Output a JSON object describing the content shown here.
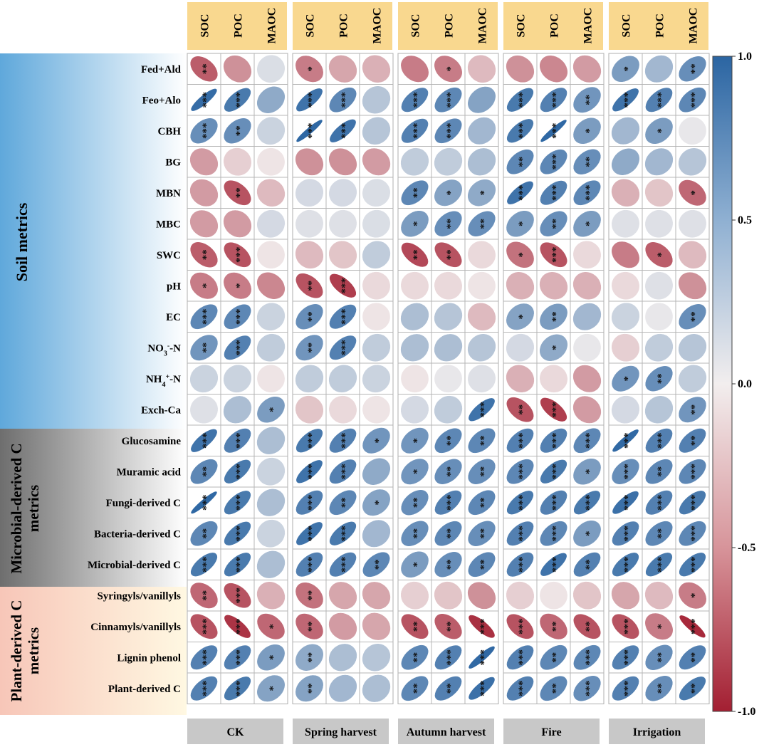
{
  "chart_data": {
    "type": "heatmap",
    "title": "",
    "panels": [
      "CK",
      "Spring harvest",
      "Autumn harvest",
      "Fire",
      "Irrigation"
    ],
    "columns": [
      "SOC",
      "POC",
      "MAOC"
    ],
    "row_groups": [
      {
        "name": "Soil metrics",
        "rows": [
          "Fed+Ald",
          "Feo+Alo",
          "CBH",
          "BG",
          "MBN",
          "MBC",
          "SWC",
          "pH",
          "EC",
          "NO3--N",
          "NH4+-N",
          "Exch-Ca"
        ]
      },
      {
        "name_lines": [
          "Microbial-derived C",
          "metrics"
        ],
        "rows": [
          "Glucosamine",
          "Muramic acid",
          "Fungi-derived C",
          "Bacteria-derived C",
          "Microbial-derived C"
        ]
      },
      {
        "name_lines": [
          "Plant-derived C",
          "metrics"
        ],
        "rows": [
          "Syringyls/vanillyls",
          "Cinnamyls/vanillyls",
          "Lignin phenol",
          "Plant-derived C"
        ]
      }
    ],
    "colorbar": {
      "range": [
        -1.0,
        1.0
      ],
      "ticks": [
        "1.0",
        "0.5",
        "0.0",
        "-0.5",
        "-1.0"
      ],
      "colors": {
        "neg": "#A31F32",
        "mid": "#F2EEEE",
        "pos": "#2B65A2"
      }
    },
    "header_color": "#F9D88F",
    "band_colors": {
      "soil": "#5FA8DB",
      "microbial": "#6E6E6E",
      "plant": "#F7C6B8",
      "plant_end": "#FFF3D6"
    },
    "panel_label_color": "#C8C8C8",
    "values": [
      [
        [
          -0.7,
          -0.45,
          0.12
        ],
        [
          -0.55,
          -0.35,
          -0.3
        ],
        [
          -0.55,
          -0.55,
          -0.25
        ],
        [
          -0.45,
          -0.5,
          -0.4
        ],
        [
          0.6,
          0.4,
          0.7
        ]
      ],
      [
        [
          0.95,
          0.85,
          0.5
        ],
        [
          0.9,
          0.75,
          0.3
        ],
        [
          0.8,
          0.75,
          0.55
        ],
        [
          0.85,
          0.8,
          0.65
        ],
        [
          0.9,
          0.8,
          0.75
        ]
      ],
      [
        [
          0.7,
          0.7,
          0.2
        ],
        [
          0.98,
          0.9,
          0.3
        ],
        [
          0.8,
          0.75,
          0.4
        ],
        [
          0.85,
          0.98,
          0.6
        ],
        [
          0.4,
          0.6,
          0.05
        ]
      ],
      [
        [
          -0.4,
          -0.15,
          -0.05
        ],
        [
          -0.45,
          -0.45,
          -0.4
        ],
        [
          0.25,
          0.25,
          0.35
        ],
        [
          0.75,
          0.75,
          0.7
        ],
        [
          0.5,
          0.4,
          0.3
        ]
      ],
      [
        [
          -0.4,
          -0.75,
          -0.25
        ],
        [
          0.15,
          0.15,
          0.12
        ],
        [
          0.75,
          0.55,
          0.5
        ],
        [
          0.9,
          0.8,
          0.75
        ],
        [
          -0.3,
          -0.2,
          -0.65
        ]
      ],
      [
        [
          -0.4,
          -0.4,
          0.15
        ],
        [
          0.1,
          0.1,
          0.12
        ],
        [
          0.6,
          0.7,
          0.7
        ],
        [
          0.6,
          0.7,
          0.6
        ],
        [
          0.1,
          0.1,
          0.1
        ]
      ],
      [
        [
          -0.7,
          -0.75,
          -0.05
        ],
        [
          -0.25,
          -0.2,
          0.25
        ],
        [
          -0.8,
          -0.75,
          -0.1
        ],
        [
          -0.6,
          -0.75,
          -0.1
        ],
        [
          -0.55,
          -0.7,
          -0.25
        ]
      ],
      [
        [
          -0.55,
          -0.55,
          -0.5
        ],
        [
          -0.75,
          -0.85,
          -0.1
        ],
        [
          -0.1,
          -0.1,
          -0.05
        ],
        [
          -0.3,
          -0.3,
          -0.3
        ],
        [
          -0.1,
          0.1,
          -0.45
        ]
      ],
      [
        [
          0.75,
          0.75,
          0.2
        ],
        [
          0.7,
          0.8,
          -0.05
        ],
        [
          0.35,
          0.3,
          -0.25
        ],
        [
          0.55,
          0.6,
          0.4
        ],
        [
          0.2,
          0.05,
          0.7
        ]
      ],
      [
        [
          0.65,
          0.8,
          0.25
        ],
        [
          0.65,
          0.8,
          0.25
        ],
        [
          0.35,
          0.35,
          0.3
        ],
        [
          0.15,
          0.5,
          0.05
        ],
        [
          -0.15,
          0.25,
          0.3
        ]
      ],
      [
        [
          0.2,
          0.2,
          -0.05
        ],
        [
          0.25,
          0.25,
          0.2
        ],
        [
          -0.05,
          0.05,
          0.1
        ],
        [
          -0.3,
          -0.1,
          -0.4
        ],
        [
          0.65,
          0.7,
          0.25
        ]
      ],
      [
        [
          0.1,
          0.35,
          0.6
        ],
        [
          -0.2,
          -0.1,
          -0.05
        ],
        [
          0.15,
          0.25,
          0.9
        ],
        [
          -0.75,
          -0.85,
          -0.4
        ],
        [
          0.15,
          0.3,
          0.65
        ]
      ],
      [
        [
          0.9,
          0.8,
          0.35
        ],
        [
          0.85,
          0.8,
          0.65
        ],
        [
          0.65,
          0.75,
          0.75
        ],
        [
          0.8,
          0.8,
          0.75
        ],
        [
          0.97,
          0.8,
          0.8
        ]
      ],
      [
        [
          0.75,
          0.85,
          0.2
        ],
        [
          0.9,
          0.8,
          0.5
        ],
        [
          0.65,
          0.7,
          0.7
        ],
        [
          0.75,
          0.85,
          0.6
        ],
        [
          0.7,
          0.75,
          0.75
        ]
      ],
      [
        [
          0.98,
          0.85,
          0.35
        ],
        [
          0.8,
          0.75,
          0.55
        ],
        [
          0.7,
          0.8,
          0.75
        ],
        [
          0.85,
          0.8,
          0.85
        ],
        [
          0.92,
          0.8,
          0.85
        ]
      ],
      [
        [
          0.75,
          0.85,
          0.2
        ],
        [
          0.9,
          0.85,
          0.4
        ],
        [
          0.7,
          0.75,
          0.7
        ],
        [
          0.8,
          0.75,
          0.6
        ],
        [
          0.8,
          0.75,
          0.75
        ]
      ],
      [
        [
          0.85,
          0.85,
          0.35
        ],
        [
          0.8,
          0.8,
          0.75
        ],
        [
          0.6,
          0.7,
          0.75
        ],
        [
          0.8,
          0.9,
          0.8
        ],
        [
          0.85,
          0.85,
          0.85
        ]
      ],
      [
        [
          -0.65,
          -0.75,
          -0.3
        ],
        [
          -0.6,
          -0.35,
          -0.35
        ],
        [
          -0.15,
          -0.2,
          -0.45
        ],
        [
          -0.15,
          -0.05,
          -0.2
        ],
        [
          -0.35,
          -0.25,
          -0.55
        ]
      ],
      [
        [
          -0.75,
          -0.9,
          -0.65
        ],
        [
          -0.65,
          -0.4,
          -0.35
        ],
        [
          -0.75,
          -0.7,
          -0.92
        ],
        [
          -0.75,
          -0.65,
          -0.75
        ],
        [
          -0.75,
          -0.55,
          -0.95
        ]
      ],
      [
        [
          0.8,
          0.8,
          0.6
        ],
        [
          0.5,
          0.35,
          0.3
        ],
        [
          0.75,
          0.8,
          0.97
        ],
        [
          0.8,
          0.75,
          0.75
        ],
        [
          0.8,
          0.7,
          0.8
        ]
      ],
      [
        [
          0.8,
          0.85,
          0.55
        ],
        [
          0.55,
          0.4,
          0.35
        ],
        [
          0.75,
          0.8,
          0.92
        ],
        [
          0.8,
          0.75,
          0.7
        ],
        [
          0.8,
          0.7,
          0.85
        ]
      ]
    ],
    "stars": [
      [
        [
          2,
          0,
          0
        ],
        [
          1,
          0,
          0
        ],
        [
          0,
          1,
          0
        ],
        [
          0,
          0,
          0
        ],
        [
          1,
          0,
          2
        ]
      ],
      [
        [
          3,
          3,
          0
        ],
        [
          3,
          3,
          0
        ],
        [
          3,
          3,
          0
        ],
        [
          3,
          3,
          2
        ],
        [
          3,
          3,
          3
        ]
      ],
      [
        [
          3,
          2,
          0
        ],
        [
          3,
          3,
          0
        ],
        [
          3,
          3,
          0
        ],
        [
          3,
          3,
          1
        ],
        [
          0,
          1,
          0
        ]
      ],
      [
        [
          0,
          0,
          0
        ],
        [
          0,
          0,
          0
        ],
        [
          0,
          0,
          0
        ],
        [
          2,
          3,
          2
        ],
        [
          0,
          0,
          0
        ]
      ],
      [
        [
          0,
          2,
          0
        ],
        [
          0,
          0,
          0
        ],
        [
          2,
          1,
          1
        ],
        [
          3,
          3,
          3
        ],
        [
          0,
          0,
          1
        ]
      ],
      [
        [
          0,
          0,
          0
        ],
        [
          0,
          0,
          0
        ],
        [
          1,
          2,
          2
        ],
        [
          1,
          2,
          1
        ],
        [
          0,
          0,
          0
        ]
      ],
      [
        [
          2,
          3,
          0
        ],
        [
          0,
          0,
          0
        ],
        [
          2,
          2,
          0
        ],
        [
          1,
          3,
          0
        ],
        [
          0,
          1,
          0
        ]
      ],
      [
        [
          1,
          1,
          0
        ],
        [
          2,
          3,
          0
        ],
        [
          0,
          0,
          0
        ],
        [
          0,
          0,
          0
        ],
        [
          0,
          0,
          0
        ]
      ],
      [
        [
          3,
          3,
          0
        ],
        [
          2,
          3,
          0
        ],
        [
          0,
          0,
          0
        ],
        [
          1,
          2,
          0
        ],
        [
          0,
          0,
          2
        ]
      ],
      [
        [
          2,
          3,
          0
        ],
        [
          2,
          3,
          0
        ],
        [
          0,
          0,
          0
        ],
        [
          0,
          1,
          0
        ],
        [
          0,
          0,
          0
        ]
      ],
      [
        [
          0,
          0,
          0
        ],
        [
          0,
          0,
          0
        ],
        [
          0,
          0,
          0
        ],
        [
          0,
          0,
          0
        ],
        [
          1,
          2,
          0
        ]
      ],
      [
        [
          0,
          0,
          1
        ],
        [
          0,
          0,
          0
        ],
        [
          0,
          0,
          3
        ],
        [
          2,
          3,
          0
        ],
        [
          0,
          0,
          2
        ]
      ],
      [
        [
          3,
          3,
          0
        ],
        [
          3,
          3,
          1
        ],
        [
          1,
          2,
          2
        ],
        [
          3,
          3,
          3
        ],
        [
          3,
          3,
          2
        ]
      ],
      [
        [
          2,
          3,
          0
        ],
        [
          3,
          3,
          0
        ],
        [
          1,
          2,
          2
        ],
        [
          3,
          3,
          1
        ],
        [
          3,
          2,
          3
        ]
      ],
      [
        [
          3,
          3,
          0
        ],
        [
          3,
          2,
          1
        ],
        [
          2,
          3,
          2
        ],
        [
          3,
          3,
          3
        ],
        [
          3,
          3,
          3
        ]
      ],
      [
        [
          2,
          3,
          0
        ],
        [
          3,
          3,
          0
        ],
        [
          2,
          2,
          2
        ],
        [
          3,
          3,
          1
        ],
        [
          3,
          2,
          3
        ]
      ],
      [
        [
          3,
          3,
          0
        ],
        [
          3,
          3,
          2
        ],
        [
          1,
          2,
          2
        ],
        [
          3,
          3,
          2
        ],
        [
          3,
          3,
          3
        ]
      ],
      [
        [
          2,
          3,
          0
        ],
        [
          2,
          0,
          0
        ],
        [
          0,
          0,
          0
        ],
        [
          0,
          0,
          0
        ],
        [
          0,
          0,
          1
        ]
      ],
      [
        [
          3,
          3,
          1
        ],
        [
          2,
          0,
          0
        ],
        [
          2,
          2,
          3
        ],
        [
          3,
          2,
          2
        ],
        [
          3,
          1,
          3
        ]
      ],
      [
        [
          3,
          3,
          1
        ],
        [
          2,
          0,
          0
        ],
        [
          2,
          3,
          3
        ],
        [
          3,
          2,
          3
        ],
        [
          3,
          2,
          2
        ]
      ],
      [
        [
          3,
          3,
          1
        ],
        [
          2,
          0,
          0
        ],
        [
          2,
          2,
          3
        ],
        [
          3,
          2,
          3
        ],
        [
          3,
          2,
          2
        ]
      ]
    ]
  }
}
